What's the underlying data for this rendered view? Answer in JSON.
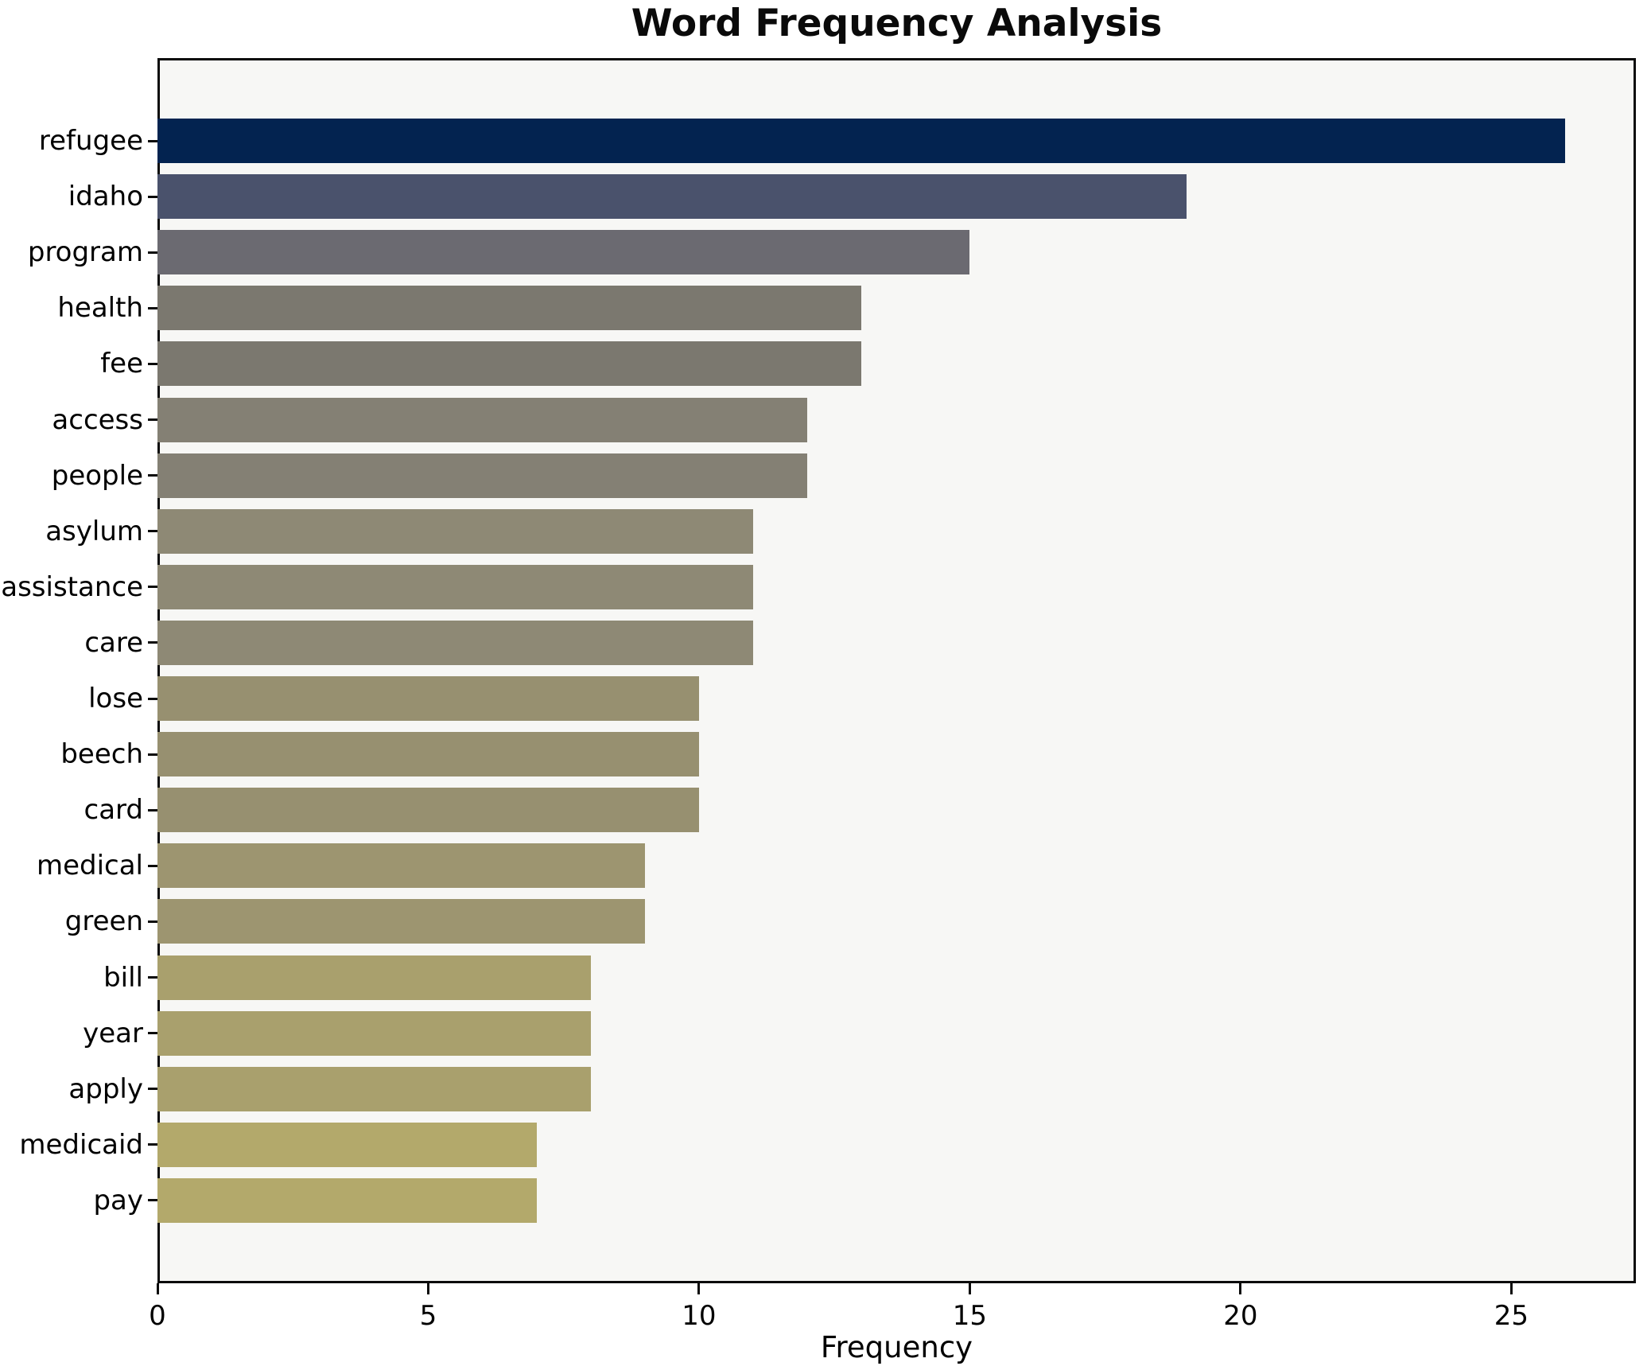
{
  "chart_data": {
    "type": "bar",
    "orientation": "horizontal",
    "title": "Word Frequency Analysis",
    "xlabel": "Frequency",
    "ylabel": "",
    "xlim": [
      0,
      27.3
    ],
    "x_ticks": [
      0,
      5,
      10,
      15,
      20,
      25
    ],
    "grid": false,
    "legend": false,
    "categories": [
      "refugee",
      "idaho",
      "program",
      "health",
      "fee",
      "access",
      "people",
      "asylum",
      "assistance",
      "care",
      "lose",
      "beech",
      "card",
      "medical",
      "green",
      "bill",
      "year",
      "apply",
      "medicaid",
      "pay"
    ],
    "values": [
      26,
      19,
      15,
      13,
      13,
      12,
      12,
      11,
      11,
      11,
      10,
      10,
      10,
      9,
      9,
      8,
      8,
      8,
      7,
      7
    ],
    "bar_colors": [
      "#032350",
      "#4A526C",
      "#6B6A71",
      "#7B786F",
      "#7B786F",
      "#848074",
      "#848074",
      "#8E8975",
      "#8E8975",
      "#8E8975",
      "#979070",
      "#979070",
      "#979070",
      "#9D9570",
      "#9D9570",
      "#A9A06D",
      "#A9A06D",
      "#A9A06D",
      "#B3A96B",
      "#B3A96B"
    ]
  },
  "colors": {
    "figure_bg": "#FFFFFF",
    "plot_bg": "#F7F7F5",
    "spine": "#0B0B0B",
    "text": "#000000"
  }
}
